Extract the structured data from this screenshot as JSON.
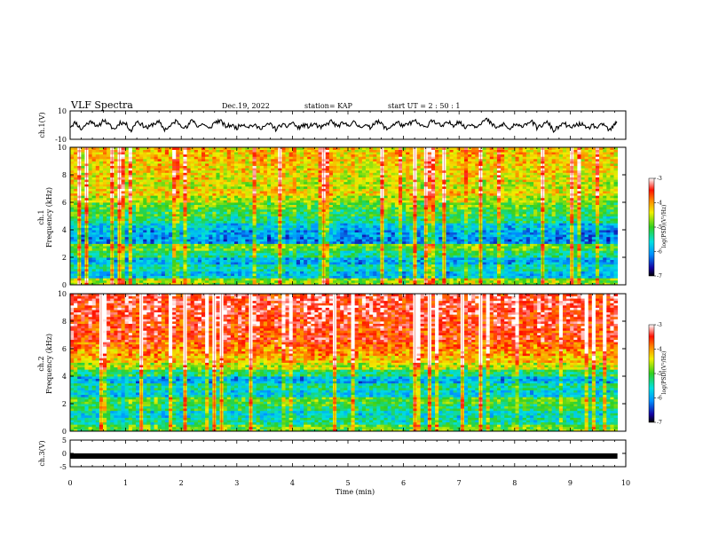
{
  "header": {
    "title": "VLF Spectra",
    "date": "Dec.19, 2022",
    "station": "station= KAP",
    "start": "start  UT =   2  : 50 : 1"
  },
  "chart_data": [
    {
      "id": "ch1_voltage",
      "type": "line",
      "ylabel": "ch.1(V)",
      "ylim": [
        -10,
        10
      ],
      "ytick_labels": [
        "10",
        "-10"
      ],
      "x_range_min": [
        0,
        9.85
      ],
      "series": [
        {
          "x": [
            0,
            0.1,
            0.2,
            0.3,
            0.4,
            0.5,
            0.6,
            0.7,
            0.8,
            0.9,
            1.0,
            1.1,
            1.2,
            1.3,
            1.4,
            1.5,
            1.6,
            1.7,
            1.8,
            1.9,
            2.0,
            2.1,
            2.2,
            2.3,
            2.4,
            2.5,
            2.6,
            2.7,
            2.8,
            2.9,
            3.0,
            3.1,
            3.2,
            3.3,
            3.4,
            3.5,
            3.6,
            3.7,
            3.8,
            3.9,
            4.0,
            4.1,
            4.2,
            4.3,
            4.4,
            4.5,
            4.6,
            4.7,
            4.8,
            4.9,
            5.0,
            5.1,
            5.2,
            5.3,
            5.4,
            5.5,
            5.6,
            5.7,
            5.8,
            5.9,
            6.0,
            6.1,
            6.2,
            6.3,
            6.4,
            6.5,
            6.6,
            6.7,
            6.8,
            6.9,
            7.0,
            7.1,
            7.2,
            7.3,
            7.4,
            7.5,
            7.6,
            7.7,
            7.8,
            7.9,
            8.0,
            8.1,
            8.2,
            8.3,
            8.4,
            8.5,
            8.6,
            8.7,
            8.8,
            8.9,
            9.0,
            9.1,
            9.2,
            9.3,
            9.4,
            9.5,
            9.6,
            9.7,
            9.8,
            9.85
          ],
          "values": [
            -1,
            2,
            -3,
            1,
            3,
            -2,
            4,
            0,
            -3,
            2,
            1,
            -4,
            3,
            0,
            -2,
            1,
            2,
            -3,
            -1,
            3,
            0,
            -2,
            4,
            -1,
            1,
            -3,
            2,
            3,
            -1,
            0,
            -2,
            1,
            -1,
            0,
            -2,
            -1,
            1,
            -3,
            0,
            -1,
            2,
            -2,
            0,
            -1,
            1,
            -2,
            0,
            3,
            -1,
            1,
            0,
            2,
            -1,
            0,
            -2,
            3,
            1,
            -3,
            0,
            2,
            -1,
            1,
            3,
            0,
            -2,
            4,
            1,
            -1,
            2,
            0,
            3,
            -2,
            1,
            -1,
            2,
            4,
            0,
            -2,
            1,
            -3,
            0,
            -1,
            1,
            3,
            -2,
            0,
            2,
            -4,
            -1,
            1,
            -2,
            0,
            1,
            -3,
            0,
            -2,
            1,
            -4,
            0,
            3
          ]
        }
      ]
    },
    {
      "id": "ch1_spectrogram",
      "type": "heatmap",
      "ylabel": "Frequency (kHz)",
      "side_label": "ch.1",
      "ylim": [
        0,
        10
      ],
      "ytick_labels": [
        "0",
        "2",
        "4",
        "6",
        "8",
        "10"
      ],
      "value_label": "log(PSD)(V²/Hz)",
      "colorbar_ticks": [
        "-3",
        "-4",
        "-5",
        "-6",
        "-7"
      ],
      "clim": [
        -7,
        -3
      ],
      "freq_bands_khz": [
        0,
        0.5,
        1,
        1.5,
        2,
        2.5,
        3,
        3.5,
        4,
        4.5,
        5,
        5.5,
        6,
        6.5,
        7,
        7.5,
        8,
        8.5,
        9,
        9.5
      ],
      "band_mean_log_psd": [
        -4.7,
        -5.8,
        -5.5,
        -5.9,
        -5.3,
        -4.9,
        -6.1,
        -6.0,
        -5.8,
        -5.3,
        -5.1,
        -4.9,
        -4.6,
        -4.3,
        -4.5,
        -4.4,
        -4.3,
        -4.3,
        -4.2,
        -4.2
      ]
    },
    {
      "id": "ch2_spectrogram",
      "type": "heatmap",
      "ylabel": "Frequency (kHz)",
      "side_label": "ch.2",
      "ylim": [
        0,
        10
      ],
      "ytick_labels": [
        "0",
        "2",
        "4",
        "6",
        "8",
        "10"
      ],
      "value_label": "log(PSD)(V²/Hz)",
      "colorbar_ticks": [
        "-3",
        "-4",
        "-5",
        "-6",
        "-7"
      ],
      "clim": [
        -7,
        -3
      ],
      "freq_bands_khz": [
        0,
        0.5,
        1,
        1.5,
        2,
        2.5,
        3,
        3.5,
        4,
        4.5,
        5,
        5.5,
        6,
        6.5,
        7,
        7.5,
        8,
        8.5,
        9,
        9.5
      ],
      "band_mean_log_psd": [
        -4.9,
        -5.4,
        -5.6,
        -5.2,
        -5.0,
        -5.7,
        -5.4,
        -5.9,
        -5.2,
        -4.6,
        -4.2,
        -4.0,
        -3.8,
        -3.6,
        -3.6,
        -3.5,
        -3.5,
        -3.4,
        -3.4,
        -3.4
      ]
    },
    {
      "id": "ch3_voltage",
      "type": "line",
      "ylabel": "ch.3(V)",
      "ylim": [
        -5,
        5
      ],
      "ytick_labels": [
        "5",
        "0",
        "-5"
      ],
      "series": [
        {
          "x": [
            0,
            9.85
          ],
          "values": [
            -1,
            -1
          ]
        }
      ]
    }
  ],
  "xaxis": {
    "label": "Time (min)",
    "range": [
      0,
      10
    ],
    "tick_labels": [
      "0",
      "1",
      "2",
      "3",
      "4",
      "5",
      "6",
      "7",
      "8",
      "9",
      "10"
    ]
  }
}
